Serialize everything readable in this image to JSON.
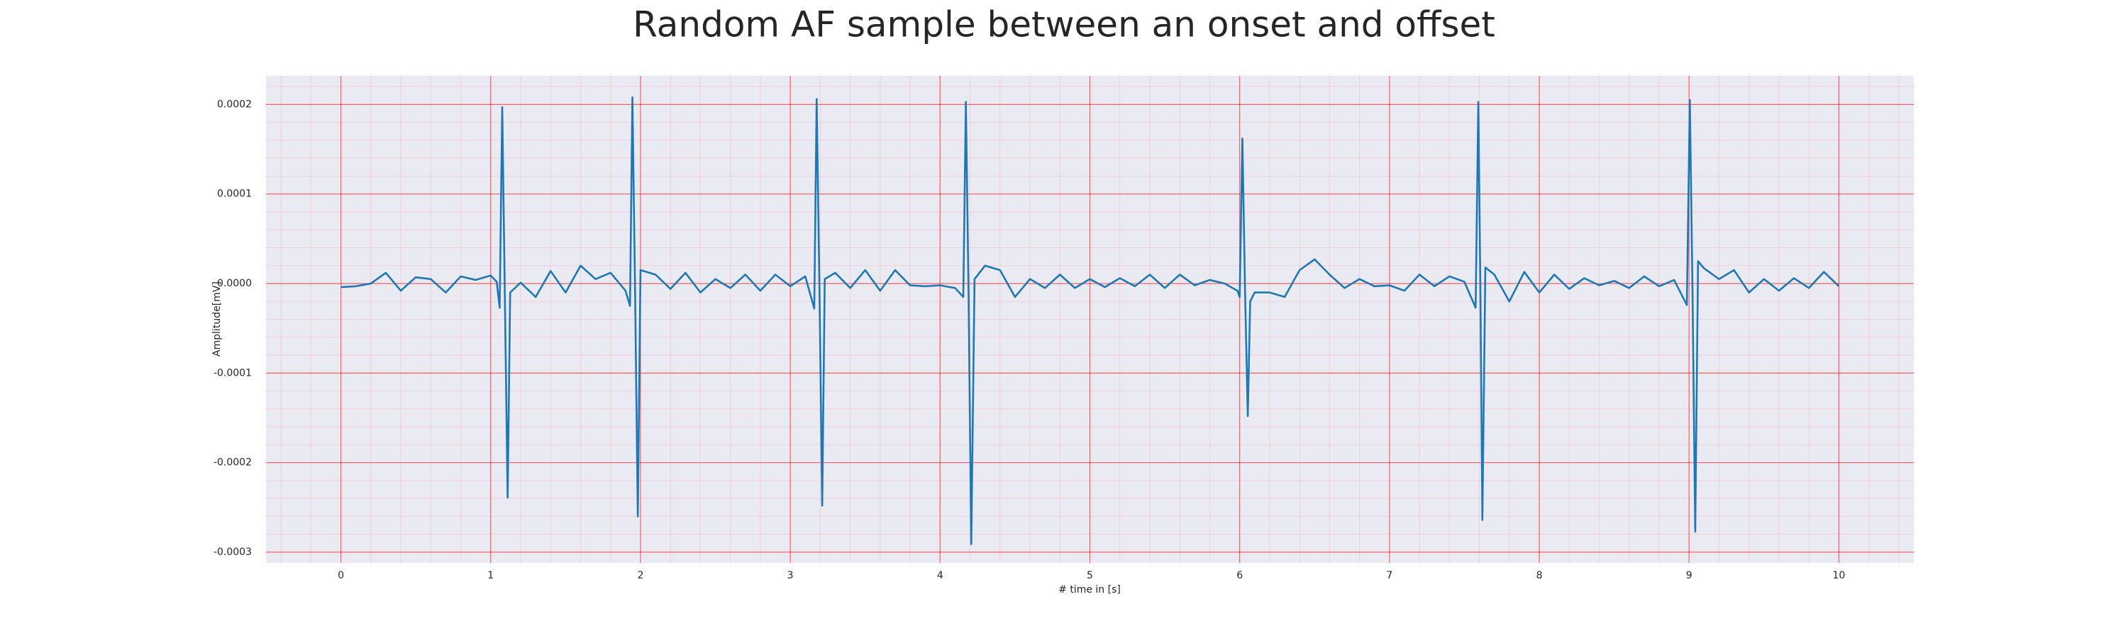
{
  "chart_data": {
    "type": "line",
    "title": "Random AF sample between an onset and offset",
    "xlabel": "# time in [s]",
    "ylabel": "Amplitude[mV]",
    "color": "#1f77b4",
    "grid": true,
    "minor_grid": true,
    "xlim": [
      -0.5,
      10.5
    ],
    "xticks": [
      0,
      1,
      2,
      3,
      4,
      5,
      6,
      7,
      8,
      9,
      10
    ],
    "ylim": [
      -0.000312,
      0.000232
    ],
    "yticks": [
      -0.0003,
      -0.0002,
      -0.0001,
      {
        "value": 0,
        "label": "0.0000"
      },
      0.0001,
      0.0002
    ],
    "x": [
      0.0,
      0.1,
      0.2,
      0.3,
      0.4,
      0.5,
      0.6,
      0.7,
      0.8,
      0.9,
      1.0,
      1.04,
      1.06,
      1.077,
      1.095,
      1.113,
      1.13,
      1.2,
      1.3,
      1.4,
      1.5,
      1.6,
      1.7,
      1.8,
      1.9,
      1.93,
      1.946,
      1.964,
      1.982,
      2.0,
      2.1,
      2.2,
      2.3,
      2.4,
      2.5,
      2.6,
      2.7,
      2.8,
      2.9,
      3.0,
      3.1,
      3.16,
      3.176,
      3.195,
      3.213,
      3.23,
      3.3,
      3.4,
      3.5,
      3.6,
      3.7,
      3.8,
      3.9,
      4.0,
      4.1,
      4.155,
      4.172,
      4.19,
      4.208,
      4.23,
      4.3,
      4.4,
      4.5,
      4.6,
      4.7,
      4.8,
      4.9,
      5.0,
      5.1,
      5.2,
      5.3,
      5.4,
      5.5,
      5.6,
      5.7,
      5.8,
      5.9,
      5.985,
      6.0,
      6.018,
      6.036,
      6.054,
      6.07,
      6.1,
      6.2,
      6.3,
      6.4,
      6.5,
      6.6,
      6.7,
      6.8,
      6.9,
      7.0,
      7.1,
      7.2,
      7.3,
      7.4,
      7.5,
      7.575,
      7.593,
      7.607,
      7.62,
      7.64,
      7.7,
      7.8,
      7.9,
      8.0,
      8.1,
      8.2,
      8.3,
      8.4,
      8.5,
      8.6,
      8.7,
      8.8,
      8.9,
      8.985,
      9.005,
      9.023,
      9.041,
      9.06,
      9.1,
      9.2,
      9.3,
      9.4,
      9.5,
      9.6,
      9.7,
      9.8,
      9.9,
      10.0
    ],
    "values": [
      -4e-06,
      -3e-06,
      0,
      1.2e-05,
      -8e-06,
      7e-06,
      5e-06,
      -1e-05,
      8e-06,
      4e-06,
      9e-06,
      2e-06,
      -2.7e-05,
      0.000197,
      -2e-05,
      -0.000239,
      -1e-05,
      1e-06,
      -1.5e-05,
      1.4e-05,
      -1e-05,
      2e-05,
      5e-06,
      1.2e-05,
      -8e-06,
      -2.5e-05,
      0.000208,
      -1e-05,
      -0.00026,
      1.5e-05,
      1e-05,
      -6e-06,
      1.2e-05,
      -1e-05,
      5e-06,
      -5e-06,
      1e-05,
      -8e-06,
      1e-05,
      -3e-06,
      8e-06,
      -2.8e-05,
      0.000206,
      -1e-05,
      -0.000248,
      5e-06,
      1.2e-05,
      -5e-06,
      1.5e-05,
      -8e-06,
      1.5e-05,
      -2e-06,
      -3e-06,
      -2e-06,
      -5e-06,
      -1.5e-05,
      0.000203,
      -1e-05,
      -0.000291,
      5e-06,
      2e-05,
      1.5e-05,
      -1.5e-05,
      5e-06,
      -5e-06,
      1e-05,
      -5e-06,
      5e-06,
      -4e-06,
      6e-06,
      -3e-06,
      1e-05,
      -5e-06,
      1e-05,
      -2e-06,
      4e-06,
      0,
      -8e-06,
      -1.5e-05,
      0.000162,
      -1e-05,
      -0.000148,
      -2e-05,
      -1e-05,
      -1e-05,
      -1.5e-05,
      1.5e-05,
      2.7e-05,
      1e-05,
      -5e-06,
      5e-06,
      -3e-06,
      -2e-06,
      -8e-06,
      1e-05,
      -3e-06,
      8e-06,
      2e-06,
      -2.7e-05,
      0.000203,
      -1e-05,
      -0.000264,
      1.8e-05,
      1e-05,
      -2e-05,
      1.3e-05,
      -1e-05,
      1e-05,
      -6e-06,
      6e-06,
      -2e-06,
      3e-06,
      -5e-06,
      8e-06,
      -3e-06,
      4e-06,
      -2.4e-05,
      0.000205,
      -1e-05,
      -0.000277,
      2.5e-05,
      1.7e-05,
      5e-06,
      1.5e-05,
      -1e-05,
      5e-06,
      -8e-06,
      6e-06,
      -5e-06,
      1.3e-05,
      -3e-06
    ]
  }
}
